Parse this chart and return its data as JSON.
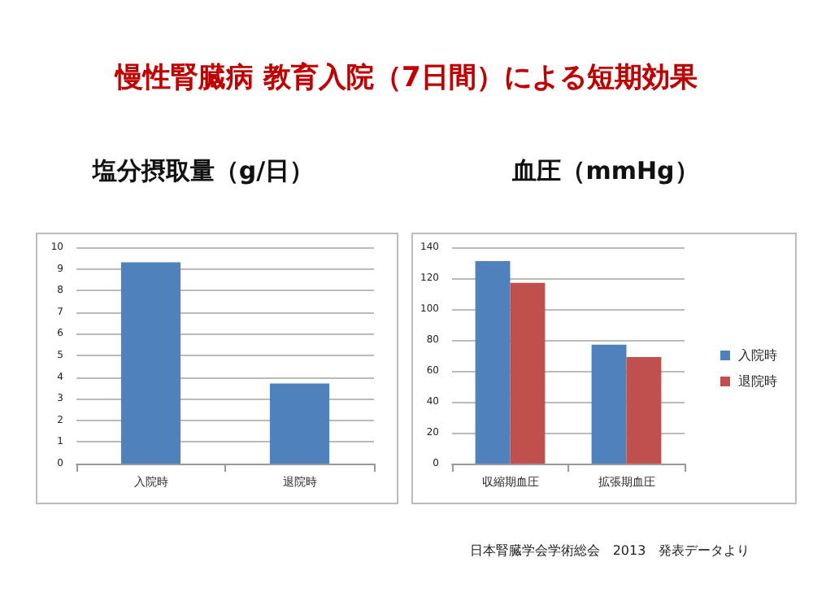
{
  "chart_data": [
    {
      "type": "bar",
      "title": "慢性腎臓病 教育入院（7日間）による短期効果",
      "subtitle": "塩分摂取量（g/日）",
      "categories": [
        "入院時",
        "退院時"
      ],
      "series": [
        {
          "color": "#4f81bd",
          "values": [
            9.3,
            3.7
          ]
        }
      ],
      "ylim": [
        0,
        10
      ],
      "yticks": [
        0,
        1,
        2,
        3,
        4,
        5,
        6,
        7,
        8,
        9,
        10
      ],
      "grid": "y",
      "legend": false
    },
    {
      "type": "bar",
      "subtitle": "血圧（mmHg）",
      "categories": [
        "収縮期血圧",
        "拡張期血圧"
      ],
      "series": [
        {
          "name": "入院時",
          "color": "#4f81bd",
          "values": [
            131,
            77
          ]
        },
        {
          "name": "退院時",
          "color": "#c0504d",
          "values": [
            117,
            69
          ]
        }
      ],
      "ylim": [
        0,
        140
      ],
      "yticks": [
        0,
        20,
        40,
        60,
        80,
        100,
        120,
        140
      ],
      "grid": "y",
      "legend": "right",
      "annotations": [
        "日本腎臓学会学術総会　2013　発表データより"
      ]
    }
  ]
}
